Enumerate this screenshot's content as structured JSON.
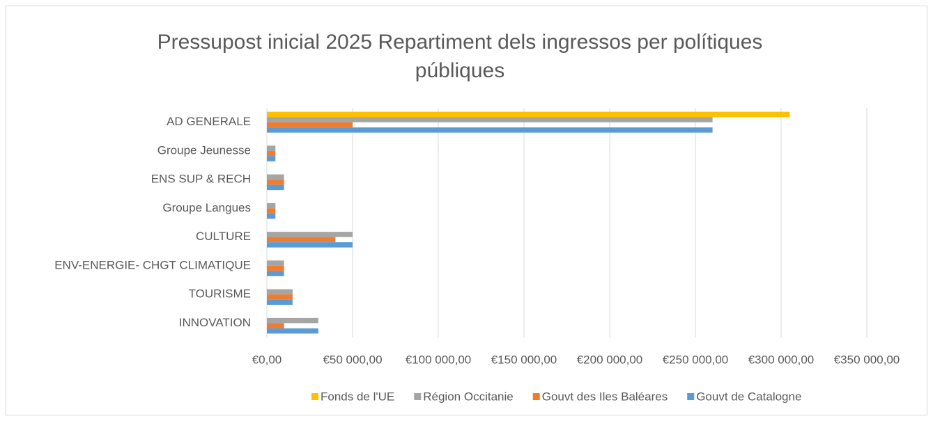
{
  "chart_data": {
    "type": "hbar",
    "title": "Pressupost inicial 2025 Repartiment dels ingressos per polítiques públiques",
    "categories": [
      "AD GENERALE",
      "Groupe Jeunesse",
      "ENS SUP & RECH",
      "Groupe Langues",
      "CULTURE",
      "ENV-ENERGIE- CHGT CLIMATIQUE",
      "TOURISME",
      "INNOVATION"
    ],
    "series": [
      {
        "name": "Fonds de l'UE",
        "color": "#ffc000",
        "values": [
          305000,
          0,
          0,
          0,
          0,
          0,
          0,
          0
        ]
      },
      {
        "name": "Région Occitanie",
        "color": "#a5a5a5",
        "values": [
          260000,
          5000,
          10000,
          5000,
          50000,
          10000,
          15000,
          30000
        ]
      },
      {
        "name": "Gouvt des Iles Baléares",
        "color": "#ed7d31",
        "values": [
          50000,
          5000,
          10000,
          5000,
          40000,
          10000,
          15000,
          10000
        ]
      },
      {
        "name": "Gouvt de  Catalogne",
        "color": "#5b9bd5",
        "values": [
          260000,
          5000,
          10000,
          5000,
          50000,
          10000,
          15000,
          30000
        ]
      }
    ],
    "xlim": [
      0,
      350000
    ],
    "xticks": [
      {
        "value": 0,
        "label": "€0,00"
      },
      {
        "value": 50000,
        "label": "€50 000,00"
      },
      {
        "value": 100000,
        "label": "€100 000,00"
      },
      {
        "value": 150000,
        "label": "€150 000,00"
      },
      {
        "value": 200000,
        "label": "€200 000,00"
      },
      {
        "value": 250000,
        "label": "€250 000,00"
      },
      {
        "value": 300000,
        "label": "€300 000,00"
      },
      {
        "value": 350000,
        "label": "€350 000,00"
      }
    ],
    "grid": true,
    "legend": "bottom"
  }
}
